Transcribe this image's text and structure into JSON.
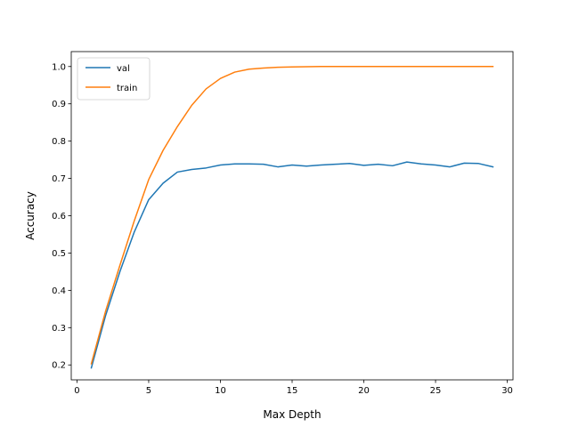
{
  "chart_data": {
    "type": "line",
    "xlabel": "Max Depth",
    "ylabel": "Accuracy",
    "xlim": [
      -0.4,
      30.4
    ],
    "ylim": [
      0.16,
      1.04
    ],
    "xticks": [
      0,
      5,
      10,
      15,
      20,
      25,
      30
    ],
    "yticks": [
      0.2,
      0.3,
      0.4,
      0.5,
      0.6,
      0.7,
      0.8,
      0.9,
      1.0
    ],
    "xtick_labels": [
      "0",
      "5",
      "10",
      "15",
      "20",
      "25",
      "30"
    ],
    "ytick_labels": [
      "0.2",
      "0.3",
      "0.4",
      "0.5",
      "0.6",
      "0.7",
      "0.8",
      "0.9",
      "1.0"
    ],
    "grid": false,
    "legend": "top-left",
    "x": [
      1,
      2,
      3,
      4,
      5,
      6,
      7,
      8,
      9,
      10,
      11,
      12,
      13,
      14,
      15,
      16,
      17,
      18,
      19,
      20,
      21,
      22,
      23,
      24,
      25,
      26,
      27,
      28,
      29
    ],
    "series": [
      {
        "name": "val",
        "color": "#1f77b4",
        "values": [
          0.192,
          0.333,
          0.451,
          0.557,
          0.643,
          0.687,
          0.717,
          0.724,
          0.728,
          0.736,
          0.739,
          0.739,
          0.738,
          0.731,
          0.736,
          0.733,
          0.736,
          0.738,
          0.74,
          0.735,
          0.738,
          0.734,
          0.744,
          0.739,
          0.736,
          0.731,
          0.741,
          0.74,
          0.731
        ]
      },
      {
        "name": "train",
        "color": "#ff7f0e",
        "values": [
          0.203,
          0.345,
          0.468,
          0.587,
          0.697,
          0.775,
          0.839,
          0.896,
          0.94,
          0.968,
          0.985,
          0.993,
          0.996,
          0.998,
          0.999,
          0.9995,
          1.0,
          1.0,
          1.0,
          1.0,
          1.0,
          1.0,
          1.0,
          1.0,
          1.0,
          1.0,
          1.0,
          1.0,
          1.0
        ]
      }
    ]
  }
}
